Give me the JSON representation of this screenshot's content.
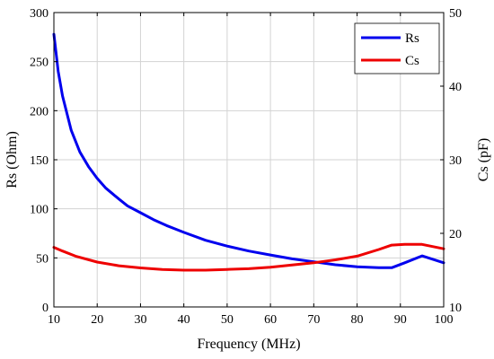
{
  "chart_data": {
    "type": "line",
    "title": "",
    "xlabel": "Frequency (MHz)",
    "ylabel_left": "Rs (Ohm)",
    "ylabel_right": "Cs (pF)",
    "xlim": [
      10,
      100
    ],
    "ylim_left": [
      0,
      300
    ],
    "ylim_right": [
      10,
      50
    ],
    "xticks": [
      10,
      20,
      30,
      40,
      50,
      60,
      70,
      80,
      90,
      100
    ],
    "yticks_left": [
      0,
      50,
      100,
      150,
      200,
      250,
      300
    ],
    "yticks_right": [
      10,
      20,
      30,
      40,
      50
    ],
    "grid": true,
    "legend_position": "top-right",
    "series": [
      {
        "name": "Rs",
        "axis": "left",
        "color": "#0000ee",
        "x": [
          10,
          11,
          12,
          14,
          16,
          18,
          20,
          22,
          25,
          27,
          30,
          33,
          36,
          40,
          45,
          50,
          55,
          60,
          65,
          70,
          75,
          80,
          85,
          88,
          91,
          95,
          100
        ],
        "y": [
          278,
          240,
          215,
          180,
          158,
          143,
          131,
          121,
          110,
          103,
          96,
          89,
          83,
          76,
          68,
          62,
          57,
          53,
          49,
          46,
          43,
          41,
          40,
          40,
          45,
          52,
          45
        ]
      },
      {
        "name": "Cs",
        "axis": "right",
        "color": "#ee0000",
        "x": [
          10,
          12,
          15,
          20,
          25,
          30,
          35,
          40,
          45,
          50,
          55,
          60,
          65,
          70,
          75,
          80,
          85,
          88,
          91,
          95,
          100
        ],
        "y": [
          18.1,
          17.6,
          16.9,
          16.1,
          15.6,
          15.3,
          15.1,
          15.0,
          15.0,
          15.1,
          15.2,
          15.4,
          15.7,
          16.0,
          16.4,
          16.9,
          17.8,
          18.4,
          18.5,
          18.5,
          17.9
        ]
      }
    ]
  }
}
